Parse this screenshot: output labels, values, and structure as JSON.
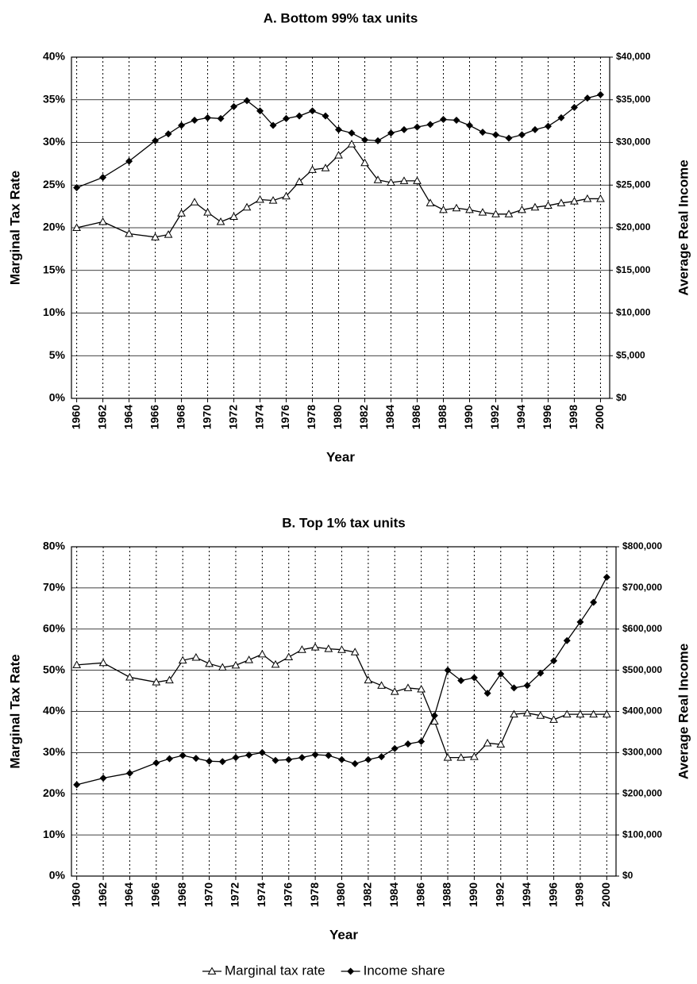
{
  "chart_data": [
    {
      "type": "line",
      "title": "A. Bottom 99% tax units",
      "xlabel": "Year",
      "ylabel": "Marginal Tax Rate",
      "y2label": "Average Real Income",
      "x": [
        1960,
        1962,
        1964,
        1966,
        1967,
        1968,
        1969,
        1970,
        1971,
        1972,
        1973,
        1974,
        1975,
        1976,
        1977,
        1978,
        1979,
        1980,
        1981,
        1982,
        1983,
        1984,
        1985,
        1986,
        1987,
        1988,
        1989,
        1990,
        1991,
        1992,
        1993,
        1994,
        1995,
        1996,
        1997,
        1998,
        1999,
        2000
      ],
      "series": [
        {
          "name": "Marginal tax rate",
          "color": "#000000",
          "marker": "triangle",
          "values": [
            20.0,
            20.7,
            19.3,
            18.9,
            19.2,
            21.7,
            23.0,
            21.8,
            20.7,
            21.3,
            22.4,
            23.3,
            23.2,
            23.7,
            25.4,
            26.8,
            27.0,
            28.5,
            29.8,
            27.6,
            25.6,
            25.3,
            25.5,
            25.5,
            22.9,
            22.1,
            22.3,
            22.1,
            21.8,
            21.6,
            21.6,
            22.1,
            22.4,
            22.6,
            22.9,
            23.1,
            23.4,
            23.4
          ]
        },
        {
          "name": "Income share",
          "color": "#000000",
          "marker": "diamond",
          "axis": "y2",
          "values": [
            24700,
            25900,
            27800,
            30200,
            31000,
            32000,
            32600,
            32900,
            32800,
            34200,
            34900,
            33700,
            32000,
            32800,
            33100,
            33700,
            33100,
            31500,
            31100,
            30300,
            30200,
            31100,
            31500,
            31800,
            32100,
            32700,
            32600,
            32000,
            31200,
            30900,
            30500,
            30900,
            31500,
            31900,
            32900,
            34100,
            35200,
            35600
          ]
        }
      ],
      "xlim": [
        1959.6,
        2000.7
      ],
      "xticks": [
        1960,
        1962,
        1964,
        1966,
        1968,
        1970,
        1972,
        1974,
        1976,
        1978,
        1980,
        1982,
        1984,
        1986,
        1988,
        1990,
        1992,
        1994,
        1996,
        1998,
        2000
      ],
      "ylim": [
        0,
        40
      ],
      "yticks": [
        {
          "value": 0,
          "label": "0%"
        },
        {
          "value": 5,
          "label": "5%"
        },
        {
          "value": 10,
          "label": "10%"
        },
        {
          "value": 15,
          "label": "15%"
        },
        {
          "value": 20,
          "label": "20%"
        },
        {
          "value": 25,
          "label": "25%"
        },
        {
          "value": 30,
          "label": "30%"
        },
        {
          "value": 35,
          "label": "35%"
        },
        {
          "value": 40,
          "label": "40%"
        }
      ],
      "y2lim": [
        0,
        40000
      ],
      "y2ticks": [
        {
          "value": 0,
          "label": "$0"
        },
        {
          "value": 5000,
          "label": "$5,000"
        },
        {
          "value": 10000,
          "label": "$10,000"
        },
        {
          "value": 15000,
          "label": "$15,000"
        },
        {
          "value": 20000,
          "label": "$20,000"
        },
        {
          "value": 25000,
          "label": "$25,000"
        },
        {
          "value": 30000,
          "label": "$30,000"
        },
        {
          "value": 35000,
          "label": "$35,000"
        },
        {
          "value": 40000,
          "label": "$40,000"
        }
      ],
      "grid": true,
      "legend": "bottom"
    },
    {
      "type": "line",
      "title": "B. Top 1% tax units",
      "xlabel": "Year",
      "ylabel": "Marginal Tax Rate",
      "y2label": "Average Real Income",
      "x": [
        1960,
        1962,
        1964,
        1966,
        1967,
        1968,
        1969,
        1970,
        1971,
        1972,
        1973,
        1974,
        1975,
        1976,
        1977,
        1978,
        1979,
        1980,
        1981,
        1982,
        1983,
        1984,
        1985,
        1986,
        1987,
        1988,
        1989,
        1990,
        1991,
        1992,
        1993,
        1994,
        1995,
        1996,
        1997,
        1998,
        1999,
        2000
      ],
      "series": [
        {
          "color": "#000000",
          "marker": "triangle",
          "values": [
            51.3,
            51.8,
            48.3,
            47.1,
            47.6,
            52.4,
            53.1,
            51.6,
            50.7,
            51.2,
            52.5,
            53.9,
            51.4,
            53.2,
            55.0,
            55.6,
            55.2,
            55.0,
            54.4,
            47.6,
            46.3,
            44.8,
            45.7,
            45.4,
            37.6,
            28.8,
            28.8,
            29.0,
            32.3,
            32.0,
            39.3,
            39.6,
            39.0,
            38.0,
            39.3,
            39.3,
            39.3,
            39.3
          ]
        },
        {
          "color": "#000000",
          "marker": "diamond",
          "axis": "y2",
          "values": [
            222000,
            238000,
            250000,
            275000,
            285000,
            293000,
            286000,
            279000,
            278000,
            288000,
            294000,
            300000,
            281000,
            283000,
            288000,
            295000,
            293000,
            283000,
            273000,
            283000,
            290000,
            310000,
            321000,
            327000,
            390000,
            500000,
            475000,
            482000,
            444000,
            491000,
            457000,
            463000,
            493000,
            523000,
            572000,
            617000,
            665000,
            726000
          ]
        }
      ],
      "xlim": [
        1959.6,
        2000.7
      ],
      "xticks": [
        1960,
        1962,
        1964,
        1966,
        1968,
        1970,
        1972,
        1974,
        1976,
        1978,
        1980,
        1982,
        1984,
        1986,
        1988,
        1990,
        1992,
        1994,
        1996,
        1998,
        2000
      ],
      "ylim": [
        0,
        80
      ],
      "yticks": [
        {
          "value": 0,
          "label": "0%"
        },
        {
          "value": 10,
          "label": "10%"
        },
        {
          "value": 20,
          "label": "20%"
        },
        {
          "value": 30,
          "label": "30%"
        },
        {
          "value": 40,
          "label": "40%"
        },
        {
          "value": 50,
          "label": "50%"
        },
        {
          "value": 60,
          "label": "60%"
        },
        {
          "value": 70,
          "label": "70%"
        },
        {
          "value": 80,
          "label": "80%"
        }
      ],
      "y2lim": [
        0,
        800000
      ],
      "y2ticks": [
        {
          "value": 0,
          "label": "$0"
        },
        {
          "value": 100000,
          "label": "$100,000"
        },
        {
          "value": 200000,
          "label": "$200,000"
        },
        {
          "value": 300000,
          "label": "$300,000"
        },
        {
          "value": 400000,
          "label": "$400,000"
        },
        {
          "value": 500000,
          "label": "$500,000"
        },
        {
          "value": 600000,
          "label": "$600,000"
        },
        {
          "value": 700000,
          "label": "$700,000"
        },
        {
          "value": 800000,
          "label": "$800,000"
        }
      ],
      "grid": true
    }
  ]
}
